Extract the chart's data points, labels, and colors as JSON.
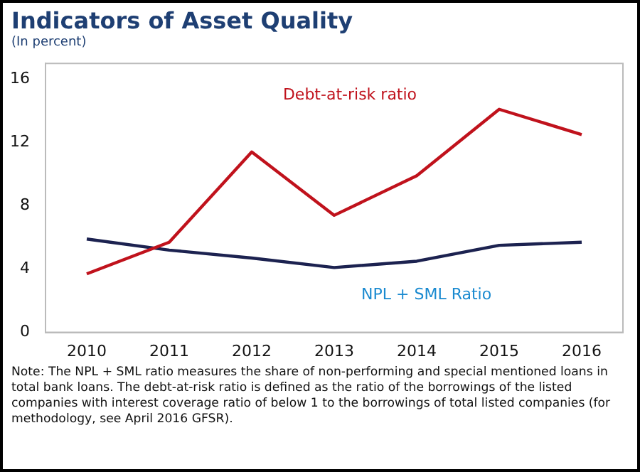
{
  "chart_data": {
    "type": "line",
    "title": "Indicators of Asset Quality",
    "subtitle": "(In percent)",
    "categories": [
      "2010",
      "2011",
      "2012",
      "2013",
      "2014",
      "2015",
      "2016"
    ],
    "series": [
      {
        "name": "Debt-at-risk ratio",
        "color": "#c0121c",
        "values": [
          3.7,
          5.7,
          11.4,
          7.4,
          9.9,
          14.1,
          12.5
        ]
      },
      {
        "name": "NPL + SML Ratio",
        "color": "#1c2250",
        "values": [
          5.9,
          5.2,
          4.7,
          4.1,
          4.5,
          5.5,
          5.7
        ]
      }
    ],
    "ylim": [
      0,
      17
    ],
    "yticks": [
      0,
      4,
      8,
      12,
      16
    ],
    "grid": false,
    "legend": false,
    "marker": "none",
    "line_style": "solid",
    "annotations": [
      "Note: The NPL + SML ratio measures the share of non-performing and special mentioned loans in total bank loans. The debt-at-risk ratio is defined as the ratio of the borrowings of the listed companies with interest coverage ratio of below 1 to the borrowings of total listed companies (for methodology, see April 2016 GFSR)."
    ]
  }
}
